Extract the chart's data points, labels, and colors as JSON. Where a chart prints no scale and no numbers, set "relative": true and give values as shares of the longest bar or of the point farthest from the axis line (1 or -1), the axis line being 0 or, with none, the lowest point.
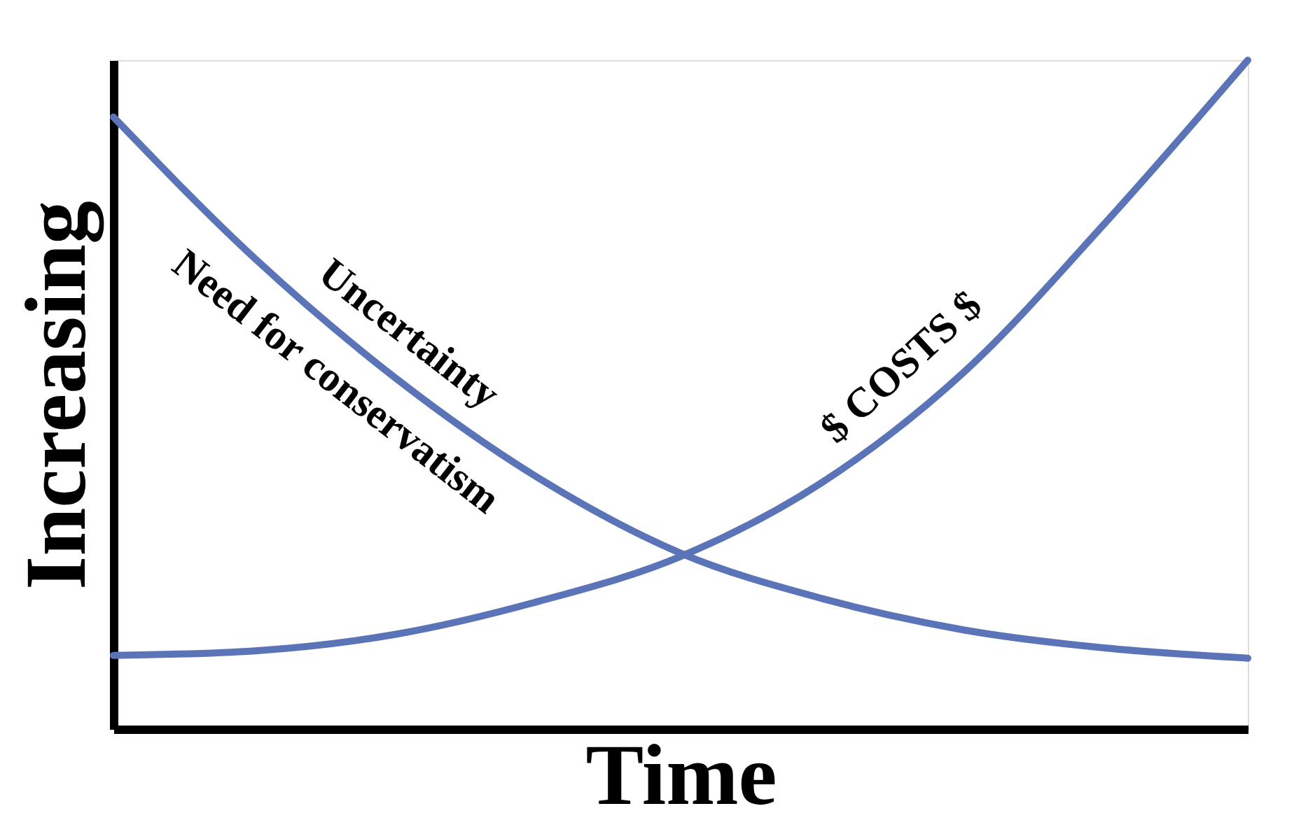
{
  "chart_data": {
    "type": "line",
    "relative": true,
    "xlabel": "Time",
    "ylabel": "Increasing",
    "categories": [
      null,
      null,
      null,
      null,
      null,
      null,
      null,
      null,
      null
    ],
    "series": [
      {
        "name": "Uncertainty",
        "color": "#5b74b8",
        "values": [
          0.915,
          0.703,
          0.523,
          0.375,
          0.263,
          0.195,
          0.148,
          0.121,
          0.106
        ]
      },
      {
        "name": "$ COSTS $",
        "color": "#5b74b8",
        "values": [
          0.11,
          0.117,
          0.142,
          0.191,
          0.258,
          0.369,
          0.534,
          0.758,
          1.0
        ]
      }
    ],
    "annotations": [
      "Need for conservatism"
    ],
    "grid": false,
    "marker": "none",
    "line_style": "solid"
  }
}
